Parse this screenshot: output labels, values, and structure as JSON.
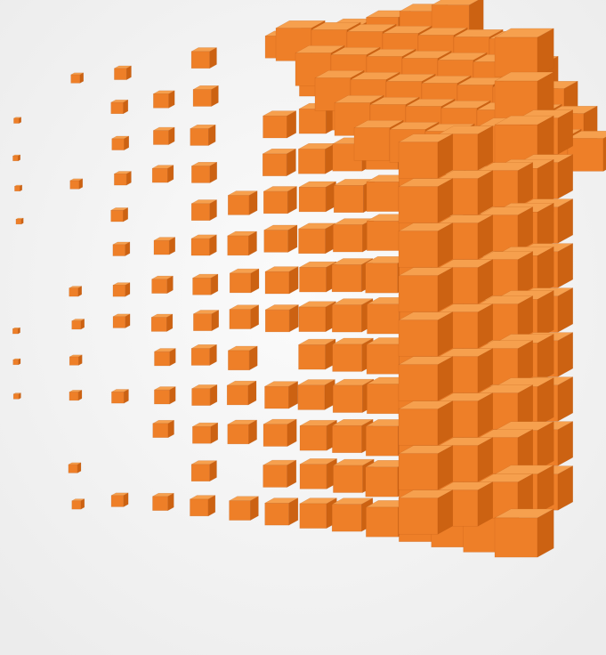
{
  "scene": {
    "subject": "voxel-cube",
    "icon": "cube-icon",
    "colors": {
      "background": "#f5f5f5",
      "cube_top": "#f6a04e",
      "cube_left": "#ee7f28",
      "cube_right": "#cc6212",
      "edge": "#b45410",
      "shadow": "#e6e6e6"
    }
  }
}
